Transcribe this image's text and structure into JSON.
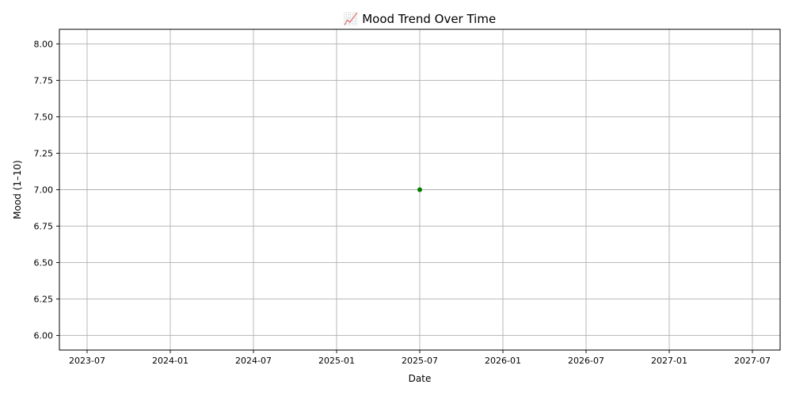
{
  "chart_data": {
    "type": "line",
    "title": "📈 Mood Trend Over Time",
    "xlabel": "Date",
    "ylabel": "Mood (1–10)",
    "x_ticks": [
      "2023-07",
      "2024-01",
      "2024-07",
      "2025-01",
      "2025-07",
      "2026-01",
      "2026-07",
      "2027-01",
      "2027-07"
    ],
    "y_ticks": [
      "6.00",
      "6.25",
      "6.50",
      "6.75",
      "7.00",
      "7.25",
      "7.50",
      "7.75",
      "8.00"
    ],
    "ylim": [
      6.0,
      8.0
    ],
    "xlim": [
      "2023-05",
      "2027-09"
    ],
    "grid": true,
    "series": [
      {
        "color": "#008000",
        "marker": "circle",
        "points": [
          {
            "x": "2025-07",
            "y": 7.0
          }
        ]
      }
    ]
  }
}
